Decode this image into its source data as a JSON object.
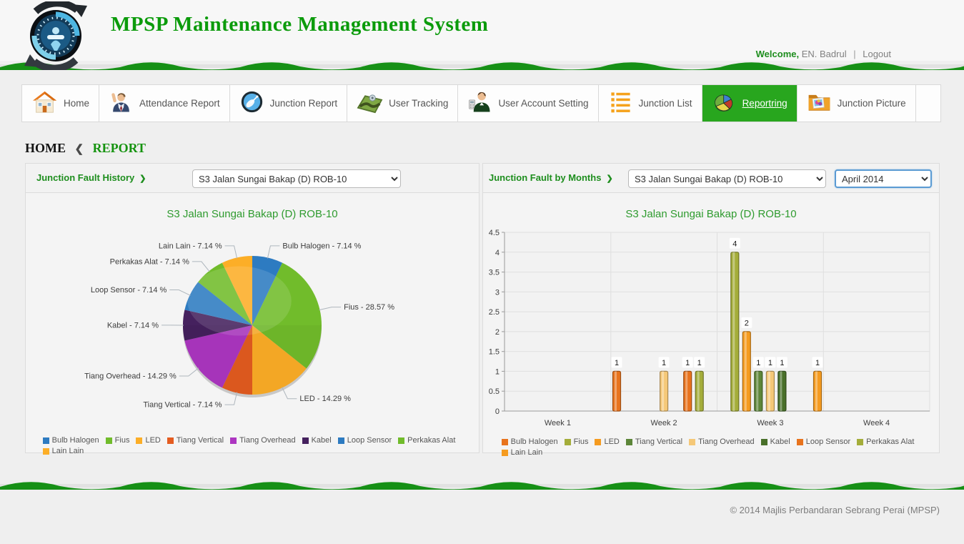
{
  "header": {
    "title": "MPSP Maintenance Management System",
    "welcome_label": "Welcome,",
    "user_name": "EN. Badrul",
    "separator": "|",
    "logout_label": "Logout"
  },
  "nav": {
    "items": [
      {
        "label": "Home",
        "icon": "home-icon",
        "active": false
      },
      {
        "label": "Attendance Report",
        "icon": "attendance-person-icon",
        "active": false
      },
      {
        "label": "Junction Report",
        "icon": "satellite-dish-icon",
        "active": false
      },
      {
        "label": "User Tracking",
        "icon": "map-tracking-icon",
        "active": false
      },
      {
        "label": "User Account Setting",
        "icon": "user-account-icon",
        "active": false
      },
      {
        "label": "Junction List",
        "icon": "orange-list-icon",
        "active": false
      },
      {
        "label": "Reportring",
        "icon": "pie-chart-icon",
        "active": true
      },
      {
        "label": "Junction Picture",
        "icon": "picture-folder-icon",
        "active": false
      }
    ]
  },
  "breadcrumb": {
    "home": "HOME",
    "separator": "❮",
    "current": "REPORT"
  },
  "panels": {
    "arrow_icon": "❯",
    "left": {
      "title": "Junction Fault History",
      "junction_dropdown": "S3 Jalan Sungai Bakap (D) ROB-10"
    },
    "right": {
      "title": "Junction Fault by Months",
      "junction_dropdown": "S3 Jalan Sungai Bakap (D) ROB-10",
      "month_dropdown": "April 2014"
    }
  },
  "chart_data": [
    {
      "type": "pie",
      "title": "S3 Jalan Sungai Bakap (D) ROB-10",
      "unit": "%",
      "legend_position": "bottom",
      "slices": [
        {
          "label": "Bulb Halogen",
          "value": 7.14,
          "color": "#2d7bc1"
        },
        {
          "label": "Fius",
          "value": 28.57,
          "color": "#71bc2b"
        },
        {
          "label": "LED",
          "value": 14.29,
          "color": "#fcae27"
        },
        {
          "label": "Tiang Vertical",
          "value": 7.14,
          "color": "#e45c20"
        },
        {
          "label": "Tiang Overhead",
          "value": 14.29,
          "color": "#ad36c1"
        },
        {
          "label": "Kabel",
          "value": 7.14,
          "color": "#45215e"
        },
        {
          "label": "Loop Sensor",
          "value": 7.14,
          "color": "#2d7bc1"
        },
        {
          "label": "Perkakas Alat",
          "value": 7.14,
          "color": "#71bc2b"
        },
        {
          "label": "Lain Lain",
          "value": 7.14,
          "color": "#fcae27"
        }
      ]
    },
    {
      "type": "bar",
      "title": "S3 Jalan Sungai Bakap (D) ROB-10",
      "categories": [
        "Week 1",
        "Week 2",
        "Week 3",
        "Week 4"
      ],
      "ylim": [
        0,
        4.5
      ],
      "ytick_step": 0.5,
      "grid": true,
      "legend_position": "bottom",
      "series": [
        {
          "name": "Bulb Halogen",
          "color": "#e8731d",
          "values": [
            0,
            1,
            0,
            0
          ]
        },
        {
          "name": "Fius",
          "color": "#a4ad3a",
          "values": [
            0,
            0,
            4,
            0
          ]
        },
        {
          "name": "LED",
          "color": "#f59b20",
          "values": [
            0,
            0,
            2,
            0
          ]
        },
        {
          "name": "Tiang Vertical",
          "color": "#5d8639",
          "values": [
            0,
            0,
            1,
            0
          ]
        },
        {
          "name": "Tiang Overhead",
          "color": "#f5c878",
          "values": [
            0,
            1,
            1,
            0
          ]
        },
        {
          "name": "Kabel",
          "color": "#49702a",
          "values": [
            0,
            0,
            1,
            0
          ]
        },
        {
          "name": "Loop Sensor",
          "color": "#e8731d",
          "values": [
            0,
            1,
            0,
            0
          ]
        },
        {
          "name": "Perkakas Alat",
          "color": "#a4ad3a",
          "values": [
            0,
            1,
            0,
            0
          ]
        },
        {
          "name": "Lain Lain",
          "color": "#f59b20",
          "values": [
            0,
            0,
            1,
            0
          ]
        }
      ]
    }
  ],
  "colors": {
    "accent_green": "#0b9b0b",
    "active_tab_green": "#28a61e",
    "wave_green": "#169016"
  },
  "footer": {
    "copyright": "© 2014 Majlis Perbandaran Sebrang Perai (MPSP)"
  }
}
